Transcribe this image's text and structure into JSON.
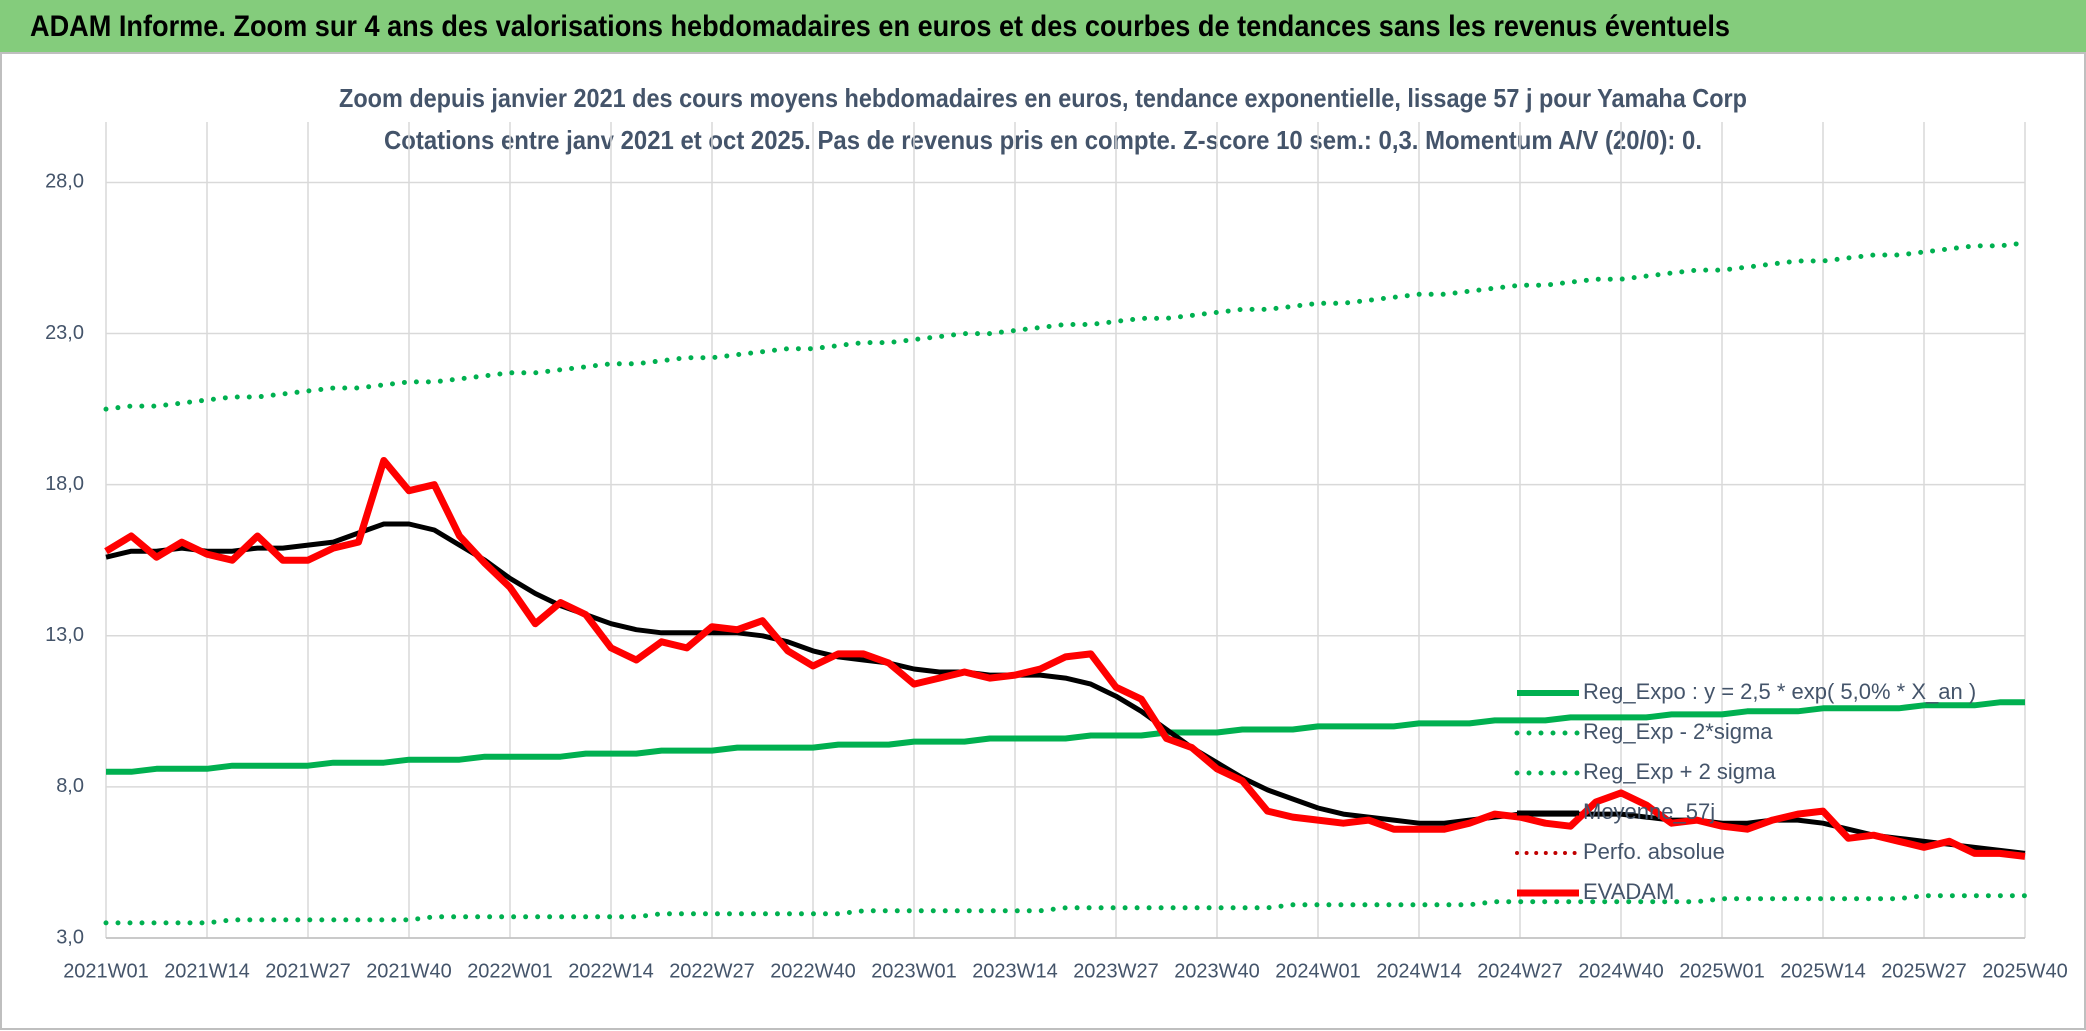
{
  "chart_data": {
    "type": "line",
    "header": "ADAM Informe. Zoom sur 4 ans des valorisations hebdomadaires en euros et des courbes de tendances sans les revenus éventuels",
    "title": "Zoom depuis janvier 2021 des cours moyens hebdomadaires en euros, tendance exponentielle, lissage 57 j pour Yamaha Corp",
    "subtitle": "Cotations entre janv 2021 et oct 2025. Pas de revenus pris en compte. Z-score 10 sem.: 0,3. Momentum A/V (20/0): 0.",
    "categories": [
      "2021W01",
      null,
      null,
      null,
      "2021W14",
      null,
      null,
      null,
      "2021W27",
      null,
      null,
      null,
      "2021W40",
      null,
      null,
      null,
      "2022W01",
      null,
      null,
      null,
      "2022W14",
      null,
      null,
      null,
      "2022W27",
      null,
      null,
      null,
      "2022W40",
      null,
      null,
      null,
      "2023W01",
      null,
      null,
      null,
      "2023W14",
      null,
      null,
      null,
      "2023W27",
      null,
      null,
      null,
      "2023W40",
      null,
      null,
      null,
      "2024W01",
      null,
      null,
      null,
      "2024W14",
      null,
      null,
      null,
      "2024W27",
      null,
      null,
      null,
      "2024W40",
      null,
      null,
      null,
      "2025W01",
      null,
      null,
      null,
      "2025W14",
      null,
      null,
      null,
      "2025W27",
      null,
      null,
      null,
      "2025W40"
    ],
    "series": [
      {
        "name": "Reg_Expo : y = 2,5 * exp( 5,0% *  X_an )",
        "color": "#00b050",
        "width": 6,
        "dotted": false,
        "values": [
          8.5,
          8.5,
          8.6,
          8.6,
          8.6,
          8.7,
          8.7,
          8.7,
          8.7,
          8.8,
          8.8,
          8.8,
          8.9,
          8.9,
          8.9,
          9.0,
          9.0,
          9.0,
          9.0,
          9.1,
          9.1,
          9.1,
          9.2,
          9.2,
          9.2,
          9.3,
          9.3,
          9.3,
          9.3,
          9.4,
          9.4,
          9.4,
          9.5,
          9.5,
          9.5,
          9.6,
          9.6,
          9.6,
          9.6,
          9.7,
          9.7,
          9.7,
          9.8,
          9.8,
          9.8,
          9.9,
          9.9,
          9.9,
          10.0,
          10.0,
          10.0,
          10.0,
          10.1,
          10.1,
          10.1,
          10.2,
          10.2,
          10.2,
          10.3,
          10.3,
          10.3,
          10.3,
          10.4,
          10.4,
          10.4,
          10.5,
          10.5,
          10.5,
          10.6,
          10.6,
          10.6,
          10.6,
          10.7,
          10.7,
          10.7,
          10.8,
          10.8
        ]
      },
      {
        "name": "Reg_Exp - 2*sigma",
        "color": "#00b050",
        "width": 5,
        "dotted": true,
        "values": [
          3.5,
          3.5,
          3.5,
          3.5,
          3.5,
          3.6,
          3.6,
          3.6,
          3.6,
          3.6,
          3.6,
          3.6,
          3.6,
          3.7,
          3.7,
          3.7,
          3.7,
          3.7,
          3.7,
          3.7,
          3.7,
          3.7,
          3.8,
          3.8,
          3.8,
          3.8,
          3.8,
          3.8,
          3.8,
          3.8,
          3.9,
          3.9,
          3.9,
          3.9,
          3.9,
          3.9,
          3.9,
          3.9,
          4.0,
          4.0,
          4.0,
          4.0,
          4.0,
          4.0,
          4.0,
          4.0,
          4.0,
          4.1,
          4.1,
          4.1,
          4.1,
          4.1,
          4.1,
          4.1,
          4.1,
          4.2,
          4.2,
          4.2,
          4.2,
          4.2,
          4.2,
          4.2,
          4.2,
          4.2,
          4.3,
          4.3,
          4.3,
          4.3,
          4.3,
          4.3,
          4.3,
          4.3,
          4.4,
          4.4,
          4.4,
          4.4,
          4.4
        ]
      },
      {
        "name": "Reg_Exp + 2 sigma",
        "color": "#00b050",
        "width": 5,
        "dotted": true,
        "values": [
          20.5,
          20.6,
          20.6,
          20.7,
          20.8,
          20.9,
          20.9,
          21.0,
          21.1,
          21.2,
          21.2,
          21.3,
          21.4,
          21.4,
          21.5,
          21.6,
          21.7,
          21.7,
          21.8,
          21.9,
          22.0,
          22.0,
          22.1,
          22.2,
          22.2,
          22.3,
          22.4,
          22.5,
          22.5,
          22.6,
          22.7,
          22.7,
          22.8,
          22.9,
          23.0,
          23.0,
          23.1,
          23.2,
          23.3,
          23.3,
          23.4,
          23.5,
          23.5,
          23.6,
          23.7,
          23.8,
          23.8,
          23.9,
          24.0,
          24.0,
          24.1,
          24.2,
          24.3,
          24.3,
          24.4,
          24.5,
          24.6,
          24.6,
          24.7,
          24.8,
          24.8,
          24.9,
          25.0,
          25.1,
          25.1,
          25.2,
          25.3,
          25.4,
          25.4,
          25.5,
          25.6,
          25.6,
          25.7,
          25.8,
          25.9,
          25.9,
          26.0
        ]
      },
      {
        "name": "Moyenne_57j",
        "color": "#000000",
        "width": 5,
        "dotted": false,
        "values": [
          15.6,
          15.8,
          15.8,
          15.9,
          15.8,
          15.8,
          15.9,
          15.9,
          16.0,
          16.1,
          16.4,
          16.7,
          16.7,
          16.5,
          16.0,
          15.5,
          14.9,
          14.4,
          14.0,
          13.7,
          13.4,
          13.2,
          13.1,
          13.1,
          13.1,
          13.1,
          13.0,
          12.8,
          12.5,
          12.3,
          12.2,
          12.1,
          11.9,
          11.8,
          11.8,
          11.7,
          11.7,
          11.7,
          11.6,
          11.4,
          11.0,
          10.5,
          9.9,
          9.3,
          8.8,
          8.3,
          7.9,
          7.6,
          7.3,
          7.1,
          7.0,
          6.9,
          6.8,
          6.8,
          6.9,
          7.0,
          7.1,
          7.1,
          7.1,
          7.1,
          7.1,
          7.0,
          6.9,
          6.9,
          6.8,
          6.8,
          6.9,
          6.9,
          6.8,
          6.6,
          6.4,
          6.3,
          6.2,
          6.1,
          6.0,
          5.9,
          5.8
        ]
      },
      {
        "name": "Perfo. absolue",
        "color": "#c00000",
        "width": 4,
        "dotted": true,
        "values": [
          null,
          null,
          null,
          null,
          null,
          null,
          null,
          null,
          null,
          null,
          null,
          null,
          null,
          null,
          null,
          null,
          null,
          null,
          null,
          null,
          null,
          null,
          null,
          null,
          null,
          null,
          null,
          null,
          null,
          null,
          null,
          null,
          null,
          null,
          null,
          null,
          null,
          null,
          null,
          null,
          null,
          null,
          null,
          null,
          null,
          null,
          null,
          null,
          null,
          null,
          null,
          null,
          null,
          null,
          null,
          null,
          null,
          null,
          null,
          null,
          null,
          null,
          null,
          null,
          null,
          null,
          null,
          null,
          null,
          null,
          null,
          null,
          null,
          null,
          null,
          null,
          null
        ]
      },
      {
        "name": "EVADAM",
        "color": "#ff0000",
        "width": 7,
        "dotted": false,
        "values": [
          15.8,
          16.3,
          15.6,
          16.1,
          15.7,
          15.5,
          16.3,
          15.5,
          15.5,
          15.9,
          16.1,
          18.8,
          17.8,
          18.0,
          16.3,
          15.4,
          14.6,
          13.4,
          14.1,
          13.7,
          12.6,
          12.2,
          12.8,
          12.6,
          13.3,
          13.2,
          13.5,
          12.5,
          12.0,
          12.4,
          12.4,
          12.1,
          11.4,
          11.6,
          11.8,
          11.6,
          11.7,
          11.9,
          12.3,
          12.4,
          11.3,
          10.9,
          9.6,
          9.3,
          8.6,
          8.2,
          7.2,
          7.0,
          6.9,
          6.8,
          6.9,
          6.6,
          6.6,
          6.6,
          6.8,
          7.1,
          7.0,
          6.8,
          6.7,
          7.5,
          7.8,
          7.4,
          6.8,
          6.9,
          6.7,
          6.6,
          6.9,
          7.1,
          7.2,
          6.3,
          6.4,
          6.2,
          6.0,
          6.2,
          5.8,
          5.8,
          5.7
        ]
      }
    ],
    "ylim": [
      3,
      30
    ],
    "yticks": [
      {
        "value": 3,
        "label": "3,0"
      },
      {
        "value": 8,
        "label": "8,0"
      },
      {
        "value": 13,
        "label": "13,0"
      },
      {
        "value": 18,
        "label": "18,0"
      },
      {
        "value": 23,
        "label": "23,0"
      },
      {
        "value": 28,
        "label": "28,0"
      }
    ],
    "grid": true,
    "legend": "right"
  }
}
